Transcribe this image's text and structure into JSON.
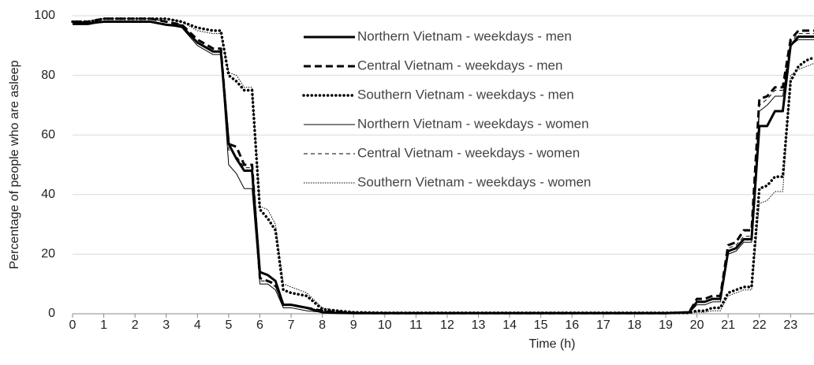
{
  "chart_data": {
    "type": "line",
    "x_label": "Time (h)",
    "y_label": "Percentage of people who are asleep",
    "x": [
      0,
      0.5,
      1,
      1.5,
      2,
      2.5,
      3,
      3.5,
      4,
      4.5,
      4.75,
      5,
      5.25,
      5.5,
      5.75,
      6,
      6.25,
      6.5,
      6.75,
      7,
      7.5,
      8,
      8.5,
      9,
      10,
      11,
      12,
      13,
      14,
      15,
      16,
      17,
      18,
      19,
      19.75,
      20,
      20.25,
      20.5,
      20.75,
      21,
      21.25,
      21.5,
      21.75,
      22,
      22.25,
      22.5,
      22.75,
      23,
      23.25,
      23.5,
      23.75
    ],
    "xlim": [
      0,
      23.75
    ],
    "xticks": [
      0,
      1,
      2,
      3,
      4,
      5,
      6,
      7,
      8,
      9,
      10,
      11,
      12,
      13,
      14,
      15,
      16,
      17,
      18,
      19,
      20,
      21,
      22,
      23
    ],
    "ylim": [
      0,
      100
    ],
    "yticks": [
      0,
      20,
      40,
      60,
      80,
      100
    ],
    "grid": true,
    "series": [
      {
        "name": "Northern Vietnam - weekdays - men",
        "color": "#000000",
        "line_width": "thick",
        "line_style": "solid",
        "values": [
          97.5,
          97.5,
          98,
          98,
          98,
          98,
          97,
          96.5,
          91,
          88,
          88,
          57,
          52,
          48,
          48,
          14,
          13,
          11,
          3,
          3,
          2,
          0.5,
          0.3,
          0.2,
          0.2,
          0.2,
          0.2,
          0.2,
          0.2,
          0.2,
          0.2,
          0.2,
          0.2,
          0.2,
          0.5,
          4,
          4,
          5,
          5,
          21,
          22,
          25,
          25,
          63,
          63,
          68,
          68,
          90,
          93,
          93,
          93
        ]
      },
      {
        "name": "Central Vietnam - weekdays - men",
        "color": "#000000",
        "line_width": "thick",
        "line_style": "dashed",
        "values": [
          98,
          98,
          99,
          99,
          99,
          99,
          98,
          97,
          92,
          89,
          89,
          57,
          56,
          50,
          50,
          12,
          11,
          10,
          3,
          3,
          2,
          1,
          0.5,
          0.3,
          0.2,
          0.2,
          0.2,
          0.2,
          0.2,
          0.2,
          0.2,
          0.2,
          0.2,
          0.2,
          0.5,
          5,
          5,
          6,
          6,
          23,
          24,
          28,
          28,
          72,
          73,
          76,
          76,
          92,
          95,
          95,
          95
        ]
      },
      {
        "name": "Southern Vietnam - weekdays - men",
        "color": "#000000",
        "line_width": "thick",
        "line_style": "dotted",
        "values": [
          98,
          98,
          99,
          99,
          99,
          99,
          99,
          98,
          96,
          95,
          95,
          80,
          78,
          75,
          75,
          35,
          32,
          28,
          8,
          7,
          6,
          1.5,
          1,
          0.5,
          0.3,
          0.3,
          0.3,
          0.3,
          0.3,
          0.3,
          0.3,
          0.3,
          0.3,
          0.3,
          0.3,
          1,
          1,
          2,
          2,
          7,
          8,
          9,
          9,
          42,
          43,
          46,
          46,
          78,
          83,
          85,
          86
        ]
      },
      {
        "name": "Northern Vietnam - weekdays - women",
        "color": "#000000",
        "line_width": "thin",
        "line_style": "solid",
        "values": [
          97,
          97,
          98,
          98,
          98,
          98,
          97,
          96,
          90,
          87,
          87,
          50,
          47,
          42,
          42,
          10,
          10,
          8,
          2,
          2,
          1,
          0.5,
          0.3,
          0.2,
          0.2,
          0.2,
          0.2,
          0.2,
          0.2,
          0.2,
          0.2,
          0.2,
          0.2,
          0.2,
          0.3,
          3,
          3,
          4,
          4,
          20,
          21,
          24,
          24,
          68,
          70,
          73,
          73,
          90,
          92,
          92,
          92
        ]
      },
      {
        "name": "Central Vietnam - weekdays - women",
        "color": "#000000",
        "line_width": "thin",
        "line_style": "dashed",
        "values": [
          98,
          98,
          99,
          99,
          99,
          99,
          98,
          97,
          91,
          88,
          88,
          55,
          53,
          49,
          49,
          11,
          11,
          9,
          3,
          3,
          2,
          1,
          0.5,
          0.3,
          0.2,
          0.2,
          0.2,
          0.2,
          0.2,
          0.2,
          0.2,
          0.2,
          0.2,
          0.2,
          0.4,
          4,
          4,
          5,
          5,
          22,
          23,
          26,
          26,
          70,
          72,
          75,
          75,
          91,
          94,
          94,
          94
        ]
      },
      {
        "name": "Southern Vietnam - weekdays - women",
        "color": "#000000",
        "line_width": "thin",
        "line_style": "dotted",
        "values": [
          98,
          98,
          99,
          99,
          99,
          99,
          99,
          98,
          95,
          94,
          94,
          81,
          80,
          76,
          76,
          36,
          35,
          30,
          10,
          9,
          7,
          2,
          1,
          0.5,
          0.3,
          0.3,
          0.3,
          0.3,
          0.3,
          0.3,
          0.3,
          0.3,
          0.3,
          0.3,
          0.3,
          0.5,
          0.5,
          1,
          1,
          6,
          7,
          8,
          8,
          37,
          38,
          41,
          41,
          80,
          82,
          83,
          84
        ]
      }
    ]
  }
}
